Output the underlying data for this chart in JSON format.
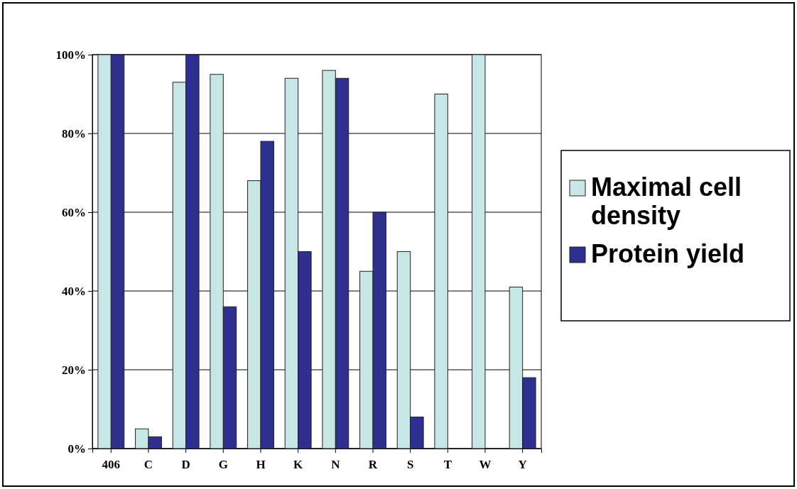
{
  "chart_data": {
    "type": "bar",
    "categories": [
      "406",
      "C",
      "D",
      "G",
      "H",
      "K",
      "N",
      "R",
      "S",
      "T",
      "W",
      "Y"
    ],
    "series": [
      {
        "name": "Maximal cell density",
        "color": "#c8e6e6",
        "values": [
          100,
          5,
          93,
          95,
          68,
          94,
          96,
          45,
          50,
          90,
          100,
          41
        ]
      },
      {
        "name": "Protein yield",
        "color": "#2f2f8f",
        "values": [
          100,
          3,
          100,
          36,
          78,
          50,
          94,
          60,
          8,
          0,
          0,
          18
        ]
      }
    ],
    "ylim": [
      0,
      100
    ],
    "yticks": [
      {
        "value": 0,
        "label": "0%"
      },
      {
        "value": 20,
        "label": "20%"
      },
      {
        "value": 40,
        "label": "40%"
      },
      {
        "value": 60,
        "label": "60%"
      },
      {
        "value": 80,
        "label": "80%"
      },
      {
        "value": 100,
        "label": "100%"
      }
    ],
    "grid": "y",
    "legend": "right"
  }
}
